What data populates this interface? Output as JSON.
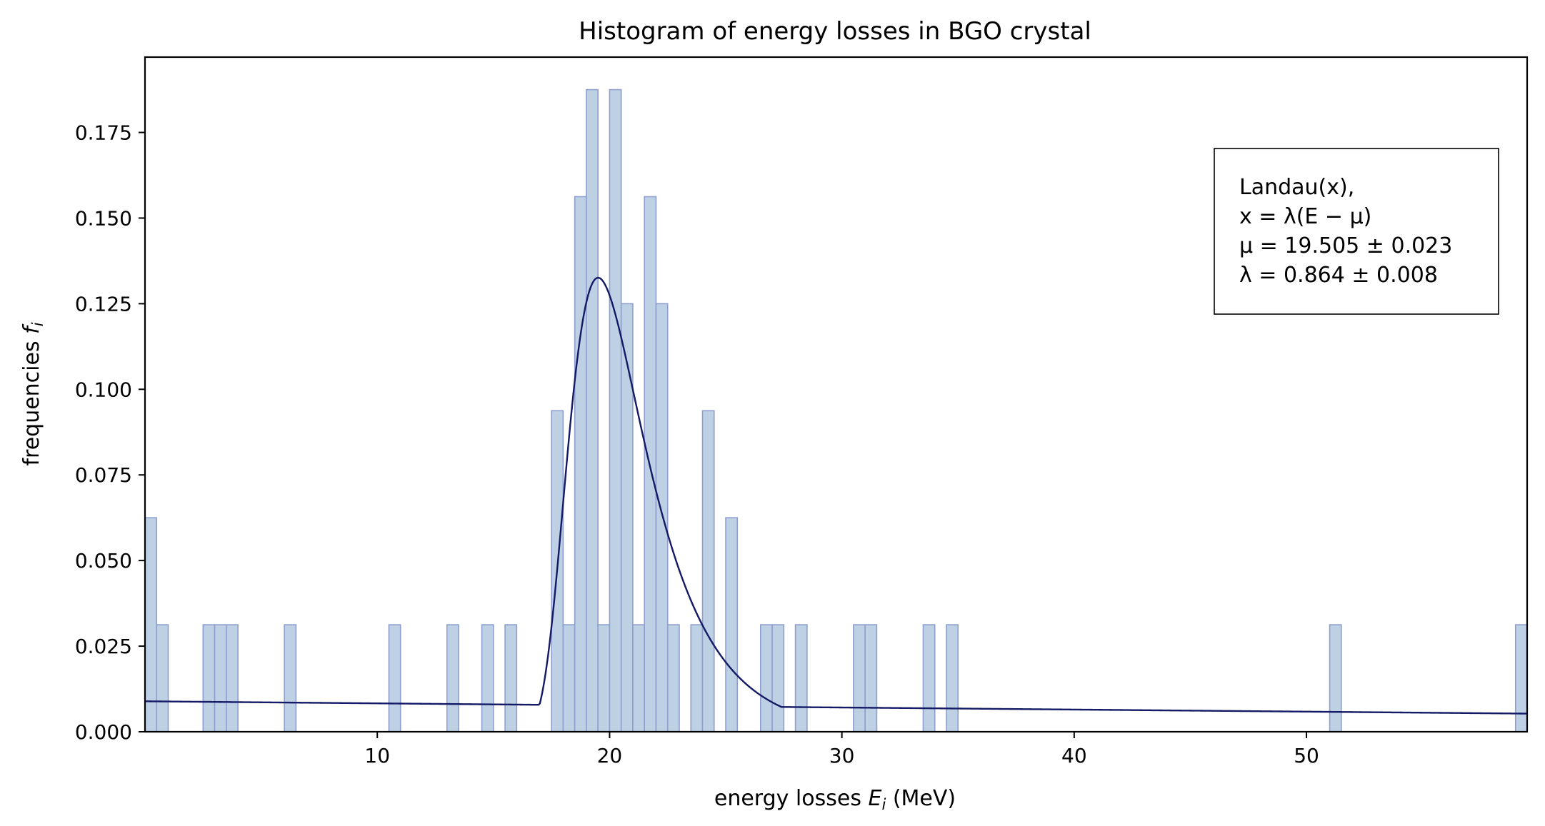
{
  "chart_data": {
    "type": "bar",
    "title": "Histogram of energy losses in BGO crystal",
    "xlabel": "energy losses E_i (MeV)",
    "ylabel": "frequencies f_i",
    "xlim": [
      0,
      59.5
    ],
    "ylim": [
      0,
      0.197
    ],
    "xticks": [
      10,
      20,
      30,
      40,
      50
    ],
    "yticks": [
      0.0,
      0.025,
      0.05,
      0.075,
      0.1,
      0.125,
      0.15,
      0.175
    ],
    "ytick_labels": [
      "0.000",
      "0.025",
      "0.050",
      "0.075",
      "0.100",
      "0.125",
      "0.150",
      "0.175"
    ],
    "grid": false,
    "histogram": {
      "bin_width": 0.5,
      "colors": {
        "fill": "#bdd0e4",
        "edge": "#8e9fcf"
      },
      "bins": [
        {
          "x": 0.0,
          "f": 0.0625
        },
        {
          "x": 0.5,
          "f": 0.03125
        },
        {
          "x": 2.5,
          "f": 0.03125
        },
        {
          "x": 3.0,
          "f": 0.03125
        },
        {
          "x": 3.5,
          "f": 0.03125
        },
        {
          "x": 6.0,
          "f": 0.03125
        },
        {
          "x": 10.5,
          "f": 0.03125
        },
        {
          "x": 13.0,
          "f": 0.03125
        },
        {
          "x": 14.5,
          "f": 0.03125
        },
        {
          "x": 15.5,
          "f": 0.03125
        },
        {
          "x": 17.5,
          "f": 0.09375
        },
        {
          "x": 18.0,
          "f": 0.03125
        },
        {
          "x": 18.5,
          "f": 0.15625
        },
        {
          "x": 19.0,
          "f": 0.1875
        },
        {
          "x": 19.5,
          "f": 0.03125
        },
        {
          "x": 20.0,
          "f": 0.1875
        },
        {
          "x": 20.5,
          "f": 0.125
        },
        {
          "x": 21.0,
          "f": 0.03125
        },
        {
          "x": 21.5,
          "f": 0.15625
        },
        {
          "x": 22.0,
          "f": 0.125
        },
        {
          "x": 22.5,
          "f": 0.03125
        },
        {
          "x": 23.5,
          "f": 0.03125
        },
        {
          "x": 24.0,
          "f": 0.09375
        },
        {
          "x": 25.0,
          "f": 0.0625
        },
        {
          "x": 26.5,
          "f": 0.03125
        },
        {
          "x": 27.0,
          "f": 0.03125
        },
        {
          "x": 28.0,
          "f": 0.03125
        },
        {
          "x": 30.5,
          "f": 0.03125
        },
        {
          "x": 31.0,
          "f": 0.03125
        },
        {
          "x": 33.5,
          "f": 0.03125
        },
        {
          "x": 34.5,
          "f": 0.03125
        },
        {
          "x": 51.0,
          "f": 0.03125
        },
        {
          "x": 59.0,
          "f": 0.03125
        }
      ]
    },
    "fit": {
      "model": "Landau",
      "mu": 19.505,
      "mu_err": 0.023,
      "lambda": 0.864,
      "lambda_err": 0.008,
      "peak": 0.1403,
      "bg_start": 0.0089,
      "bg_end": 0.0053,
      "color": "#141a66"
    },
    "legend": {
      "placement": "top-right",
      "lines": [
        "Landau(x),",
        "x = λ(E − μ)",
        "μ = 19.505 ± 0.023",
        "λ = 0.864 ± 0.008"
      ]
    }
  }
}
